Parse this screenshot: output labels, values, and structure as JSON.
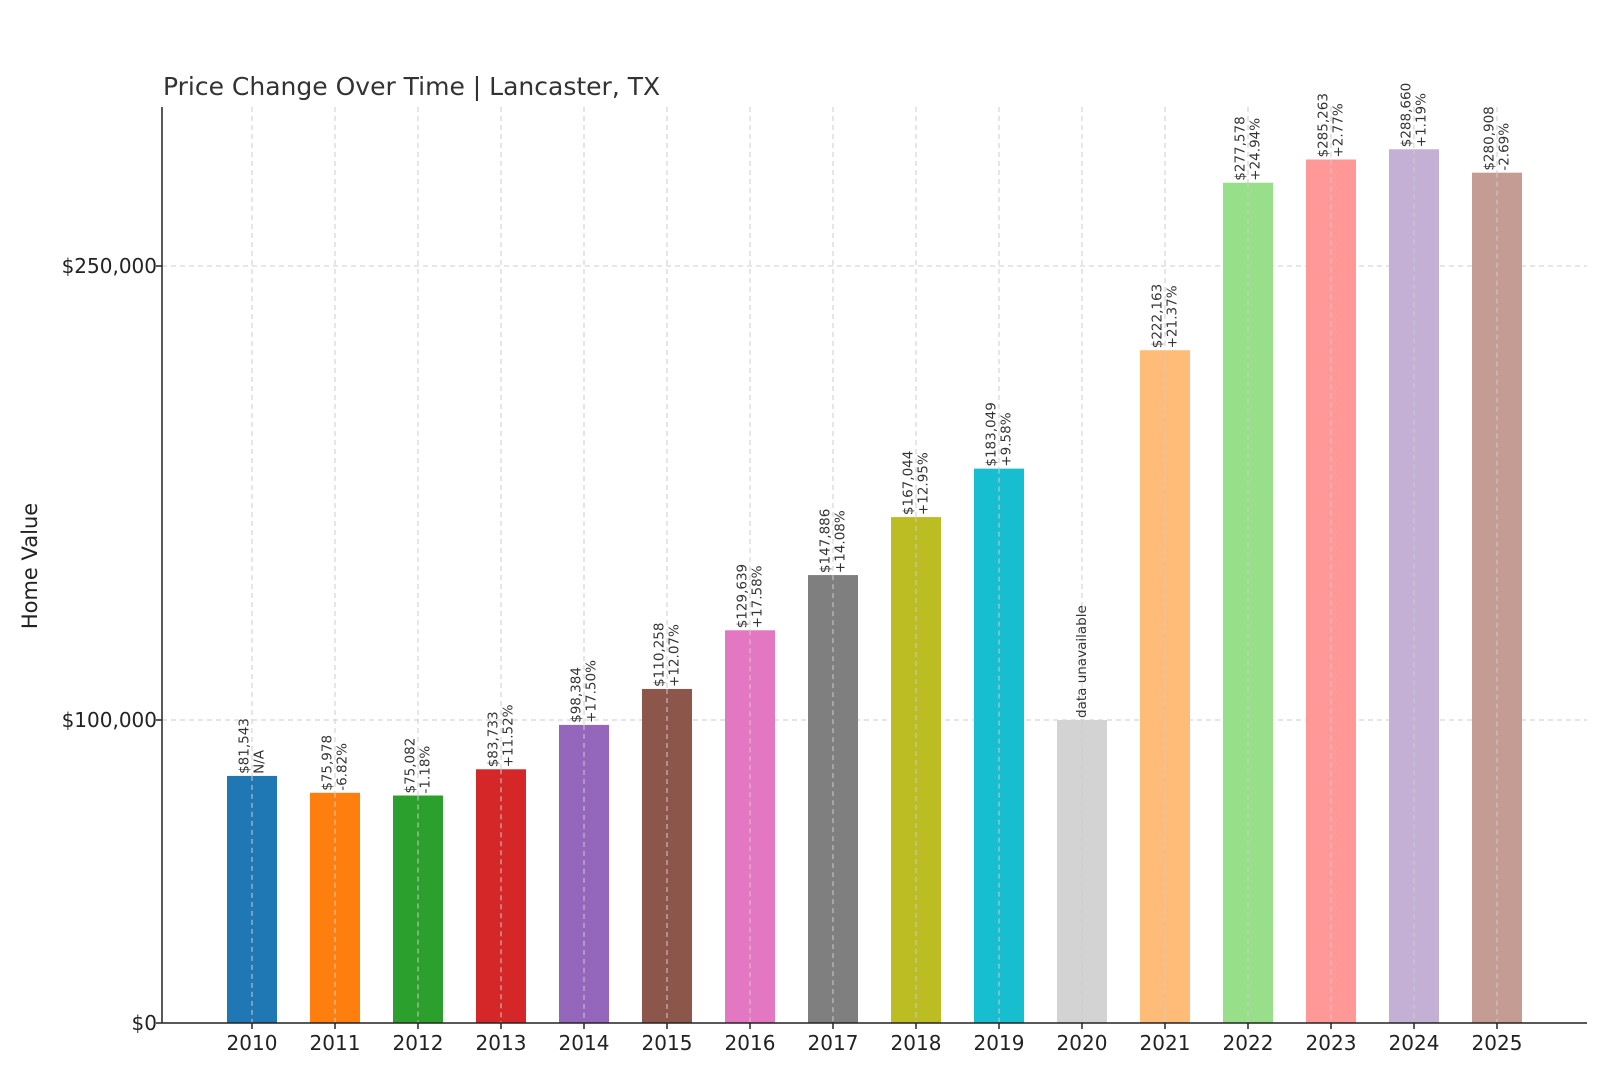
{
  "chart_data": {
    "type": "bar",
    "title": "Price Change Over Time | Lancaster, TX",
    "xlabel": "",
    "ylabel": "Home Value",
    "ylim": [
      0,
      300000
    ],
    "y_axis_scale": "nonlinear",
    "yticks": [
      {
        "value": 0,
        "label": "$0"
      },
      {
        "value": 100000,
        "label": "$100,000"
      },
      {
        "value": 250000,
        "label": "$250,000"
      }
    ],
    "grid": true,
    "categories": [
      "2010",
      "2011",
      "2012",
      "2013",
      "2014",
      "2015",
      "2016",
      "2017",
      "2018",
      "2019",
      "2020",
      "2021",
      "2022",
      "2023",
      "2024",
      "2025"
    ],
    "values": [
      81543,
      75978,
      75082,
      83733,
      98384,
      110258,
      129639,
      147886,
      167044,
      183049,
      100000,
      222163,
      277578,
      285263,
      288660,
      280908
    ],
    "data_labels": [
      [
        "$81,543",
        "N/A"
      ],
      [
        "$75,978",
        "-6.82%"
      ],
      [
        "$75,082",
        "-1.18%"
      ],
      [
        "$83,733",
        "+11.52%"
      ],
      [
        "$98,384",
        "+17.50%"
      ],
      [
        "$110,258",
        "+12.07%"
      ],
      [
        "$129,639",
        "+17.58%"
      ],
      [
        "$147,886",
        "+14.08%"
      ],
      [
        "$167,044",
        "+12.95%"
      ],
      [
        "$183,049",
        "+9.58%"
      ],
      [
        "data unavailable"
      ],
      [
        "$222,163",
        "+21.37%"
      ],
      [
        "$277,578",
        "+24.94%"
      ],
      [
        "$285,263",
        "+2.77%"
      ],
      [
        "$288,660",
        "+1.19%"
      ],
      [
        "$280,908",
        "-2.69%"
      ]
    ],
    "colors": [
      "#1f77b4",
      "#ff7f0e",
      "#2ca02c",
      "#d62728",
      "#9467bd",
      "#8c564b",
      "#e377c2",
      "#7f7f7f",
      "#bcbd22",
      "#17becf",
      "#d3d3d3",
      "#ffbb78",
      "#98df8a",
      "#ff9896",
      "#c5b0d5",
      "#c49c94"
    ]
  }
}
